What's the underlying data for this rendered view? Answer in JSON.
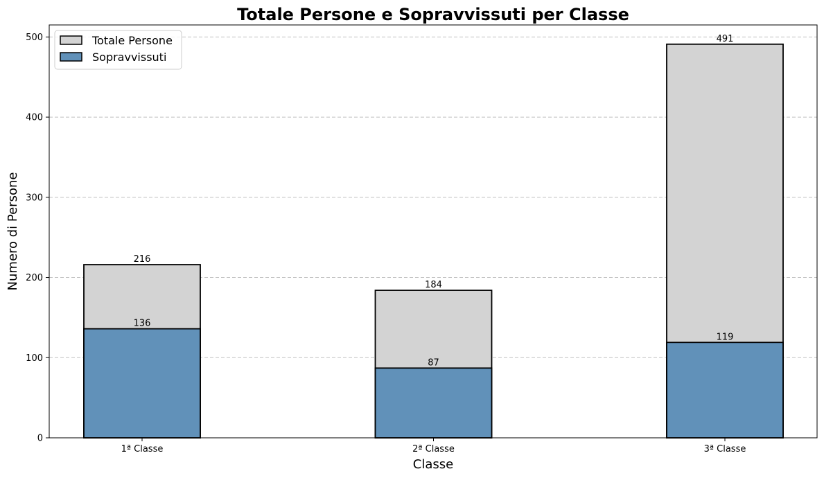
{
  "chart_data": {
    "type": "bar",
    "stacked": "overlay",
    "title": "Totale Persone e Sopravvissuti per Classe",
    "xlabel": "Classe",
    "ylabel": "Numero di Persone",
    "categories": [
      "1ª Classe",
      "2ª Classe",
      "3ª Classe"
    ],
    "series": [
      {
        "name": "Totale Persone",
        "values": [
          216,
          184,
          491
        ],
        "color": "#d3d3d3"
      },
      {
        "name": "Sopravvissuti",
        "values": [
          136,
          87,
          119
        ],
        "color": "#6191b9"
      }
    ],
    "ylim": [
      0,
      515
    ],
    "yticks": [
      0,
      100,
      200,
      300,
      400,
      500
    ],
    "grid": "y-dashed",
    "legend_position": "top-left"
  }
}
